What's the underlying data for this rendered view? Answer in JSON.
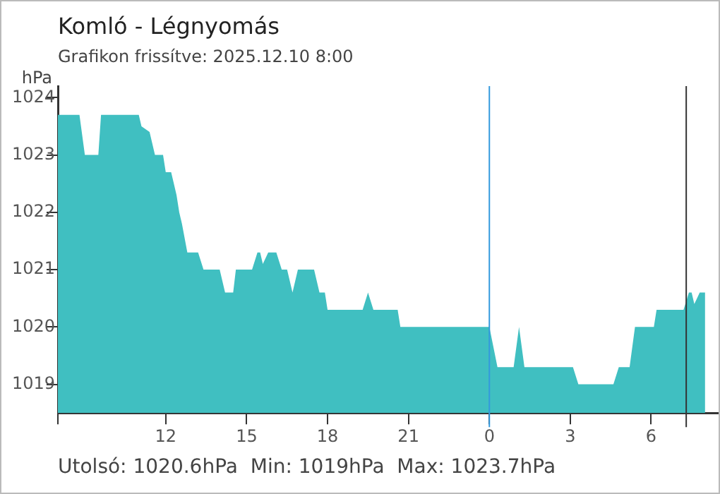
{
  "chart_data": {
    "type": "area",
    "title": "Komló - Légnyomás",
    "subtitle": "Grafikon frissítve: 2025.12.10 8:00",
    "ylabel": "hPa",
    "annotations": [
      "Utolsó: 1020.6hPa  Min: 1019hPa  Max: 1023.7hPa"
    ],
    "x": [
      "2025-12-09T08:00",
      "2025-12-09T08:48",
      "2025-12-09T09:00",
      "2025-12-09T09:30",
      "2025-12-09T09:36",
      "2025-12-09T11:00",
      "2025-12-09T11:06",
      "2025-12-09T11:24",
      "2025-12-09T11:30",
      "2025-12-09T11:36",
      "2025-12-09T11:54",
      "2025-12-09T12:00",
      "2025-12-09T12:12",
      "2025-12-09T12:24",
      "2025-12-09T12:30",
      "2025-12-09T12:36",
      "2025-12-09T12:48",
      "2025-12-09T13:12",
      "2025-12-09T13:24",
      "2025-12-09T14:00",
      "2025-12-09T14:12",
      "2025-12-09T14:30",
      "2025-12-09T14:36",
      "2025-12-09T15:12",
      "2025-12-09T15:24",
      "2025-12-09T15:30",
      "2025-12-09T15:36",
      "2025-12-09T15:48",
      "2025-12-09T16:06",
      "2025-12-09T16:18",
      "2025-12-09T16:30",
      "2025-12-09T16:42",
      "2025-12-09T16:54",
      "2025-12-09T17:30",
      "2025-12-09T17:42",
      "2025-12-09T17:54",
      "2025-12-09T18:00",
      "2025-12-09T19:18",
      "2025-12-09T19:30",
      "2025-12-09T19:42",
      "2025-12-09T20:36",
      "2025-12-09T20:42",
      "2025-12-10T00:00",
      "2025-12-10T00:18",
      "2025-12-10T00:54",
      "2025-12-10T01:06",
      "2025-12-10T01:18",
      "2025-12-10T03:06",
      "2025-12-10T03:18",
      "2025-12-10T04:36",
      "2025-12-10T04:48",
      "2025-12-10T05:12",
      "2025-12-10T05:24",
      "2025-12-10T06:06",
      "2025-12-10T06:12",
      "2025-12-10T07:12",
      "2025-12-10T07:24",
      "2025-12-10T07:30",
      "2025-12-10T07:36",
      "2025-12-10T07:42",
      "2025-12-10T07:48",
      "2025-12-10T08:00"
    ],
    "series": [
      {
        "color": "#40bfc1",
        "values": [
          1023.7,
          1023.7,
          1023.0,
          1023.0,
          1023.7,
          1023.7,
          1023.5,
          1023.4,
          1023.2,
          1023.0,
          1023.0,
          1022.7,
          1022.7,
          1022.3,
          1022.0,
          1021.8,
          1021.3,
          1021.3,
          1021.0,
          1021.0,
          1020.6,
          1020.6,
          1021.0,
          1021.0,
          1021.3,
          1021.3,
          1021.1,
          1021.3,
          1021.3,
          1021.0,
          1021.0,
          1020.6,
          1021.0,
          1021.0,
          1020.6,
          1020.6,
          1020.3,
          1020.3,
          1020.6,
          1020.3,
          1020.3,
          1020.0,
          1020.0,
          1019.3,
          1019.3,
          1020.0,
          1019.3,
          1019.3,
          1019.0,
          1019.0,
          1019.3,
          1019.3,
          1020.0,
          1020.0,
          1020.3,
          1020.3,
          1020.6,
          1020.6,
          1020.4,
          1020.5,
          1020.6,
          1020.6
        ]
      }
    ],
    "xlim": [
      "2025-12-09T08:00",
      "2025-12-10T08:30"
    ],
    "ylim": [
      1018.5,
      1024.2
    ],
    "xticks": [
      {
        "value": "2025-12-09T08:00",
        "label": null
      },
      {
        "value": "2025-12-09T12:00",
        "label": "12"
      },
      {
        "value": "2025-12-09T15:00",
        "label": "15"
      },
      {
        "value": "2025-12-09T18:00",
        "label": "18"
      },
      {
        "value": "2025-12-09T21:00",
        "label": "21"
      },
      {
        "value": "2025-12-10T00:00",
        "label": "0"
      },
      {
        "value": "2025-12-10T03:00",
        "label": "3"
      },
      {
        "value": "2025-12-10T06:00",
        "label": "6"
      }
    ],
    "yticks": [
      1019,
      1020,
      1021,
      1022,
      1023,
      1024
    ],
    "ref_lines": [
      {
        "axis": "x",
        "value": "2025-12-10T00:00",
        "color": "#3399dd"
      },
      {
        "axis": "x",
        "value": "2025-12-10T07:18",
        "color": "#333333"
      }
    ],
    "grid": false,
    "legend": false
  }
}
